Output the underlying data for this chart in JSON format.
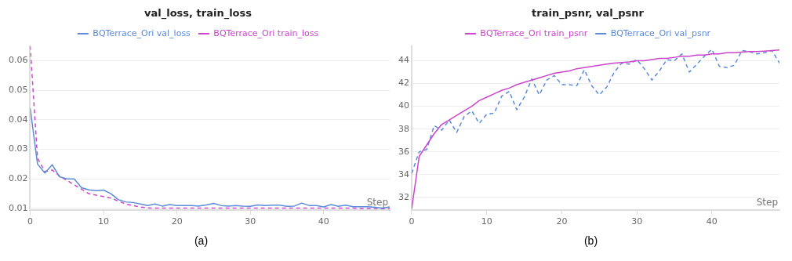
{
  "chart_data": [
    {
      "type": "line",
      "title": "val_loss, train_loss",
      "xlabel": "Step",
      "x": [
        0,
        1,
        2,
        3,
        4,
        5,
        6,
        7,
        8,
        9,
        10,
        11,
        12,
        13,
        14,
        15,
        16,
        17,
        18,
        19,
        20,
        21,
        22,
        23,
        24,
        25,
        26,
        27,
        28,
        29,
        30,
        31,
        32,
        33,
        34,
        35,
        36,
        37,
        38,
        39,
        40,
        41,
        42,
        43,
        44,
        45,
        46,
        47,
        48,
        49
      ],
      "series": [
        {
          "name": "BQTerrace_Ori val_loss",
          "color": "#5b8bd9",
          "line_style": "solid",
          "values": [
            0.044,
            0.025,
            0.022,
            0.0248,
            0.0207,
            0.02,
            0.02,
            0.017,
            0.0163,
            0.016,
            0.0162,
            0.015,
            0.013,
            0.0122,
            0.012,
            0.0115,
            0.011,
            0.0115,
            0.0108,
            0.0113,
            0.011,
            0.011,
            0.011,
            0.0108,
            0.0112,
            0.0117,
            0.011,
            0.0108,
            0.011,
            0.0108,
            0.0107,
            0.0112,
            0.011,
            0.0111,
            0.0111,
            0.0107,
            0.0108,
            0.0118,
            0.011,
            0.011,
            0.0105,
            0.0113,
            0.0107,
            0.0111,
            0.0106,
            0.0106,
            0.0106,
            0.0104,
            0.0101,
            0.0105
          ]
        },
        {
          "name": "BQTerrace_Ori train_loss",
          "color": "#cc44cc",
          "line_style": "dashed",
          "values": [
            0.065,
            0.027,
            0.0225,
            0.023,
            0.021,
            0.0195,
            0.018,
            0.0165,
            0.015,
            0.0145,
            0.014,
            0.0135,
            0.0125,
            0.0115,
            0.011,
            0.0105,
            0.0102,
            0.0101,
            0.0101,
            0.0101,
            0.0101,
            0.0101,
            0.0101,
            0.0101,
            0.0101,
            0.0101,
            0.0101,
            0.0101,
            0.0101,
            0.0101,
            0.0101,
            0.0101,
            0.0101,
            0.0101,
            0.0101,
            0.0101,
            0.0101,
            0.0101,
            0.0101,
            0.0101,
            0.0101,
            0.0101,
            0.0101,
            0.0101,
            0.0101,
            0.01,
            0.01,
            0.01,
            0.0099,
            0.0099
          ]
        }
      ],
      "xlim": [
        0,
        49
      ],
      "xticks": [
        0,
        10,
        20,
        30,
        40
      ],
      "ylim": [
        0.0095,
        0.065
      ],
      "yticks": [
        {
          "value": 0.01,
          "label": "0.01"
        },
        {
          "value": 0.02,
          "label": "0.02"
        },
        {
          "value": 0.03,
          "label": "0.03"
        },
        {
          "value": 0.04,
          "label": "0.04"
        },
        {
          "value": 0.05,
          "label": "0.05"
        },
        {
          "value": 0.06,
          "label": "0.06"
        }
      ],
      "grid": "y",
      "legend": "top",
      "marker": "none",
      "annotations": [
        "(a)"
      ]
    },
    {
      "type": "line",
      "title": "train_psnr, val_psnr",
      "xlabel": "Step",
      "x": [
        0,
        1,
        2,
        3,
        4,
        5,
        6,
        7,
        8,
        9,
        10,
        11,
        12,
        13,
        14,
        15,
        16,
        17,
        18,
        19,
        20,
        21,
        22,
        23,
        24,
        25,
        26,
        27,
        28,
        29,
        30,
        31,
        32,
        33,
        34,
        35,
        36,
        37,
        38,
        39,
        40,
        41,
        42,
        43,
        44,
        45,
        46,
        47,
        48,
        49
      ],
      "series": [
        {
          "name": "BQTerrace_Ori train_psnr",
          "color": "#cc44cc",
          "line_style": "solid",
          "values": [
            31,
            35.6,
            36.6,
            37.6,
            38.4,
            38.8,
            39.2,
            39.6,
            40.0,
            40.5,
            40.8,
            41.1,
            41.4,
            41.6,
            41.9,
            42.1,
            42.3,
            42.5,
            42.7,
            42.9,
            43.0,
            43.1,
            43.3,
            43.4,
            43.5,
            43.6,
            43.7,
            43.8,
            43.85,
            43.9,
            44.0,
            44.0,
            44.1,
            44.2,
            44.2,
            44.3,
            44.4,
            44.4,
            44.5,
            44.5,
            44.6,
            44.6,
            44.7,
            44.7,
            44.75,
            44.8,
            44.8,
            44.85,
            44.9,
            44.95
          ]
        },
        {
          "name": "BQTerrace_Ori val_psnr",
          "color": "#5b8bd9",
          "line_style": "dashed",
          "values": [
            34.1,
            36.0,
            36.2,
            38.3,
            37.9,
            38.8,
            37.7,
            39.1,
            39.6,
            38.5,
            39.3,
            39.4,
            40.9,
            41.3,
            39.7,
            40.8,
            42.4,
            41.0,
            42.3,
            42.7,
            41.9,
            41.9,
            41.8,
            43.2,
            41.8,
            41.0,
            41.7,
            43.0,
            43.8,
            43.7,
            44.1,
            43.3,
            42.3,
            43.1,
            44.1,
            44.0,
            44.6,
            43.0,
            43.7,
            44.4,
            45.0,
            43.5,
            43.4,
            43.6,
            44.9,
            44.8,
            44.6,
            44.7,
            44.9,
            43.8
          ]
        }
      ],
      "xlim": [
        0,
        49
      ],
      "xticks": [
        0,
        10,
        20,
        30,
        40
      ],
      "ylim": [
        30.9,
        45.3
      ],
      "yticks": [
        32,
        34,
        36,
        38,
        40,
        42,
        44
      ],
      "grid": "y",
      "legend": "top",
      "marker": "none",
      "annotations": [
        "(b)"
      ]
    }
  ]
}
